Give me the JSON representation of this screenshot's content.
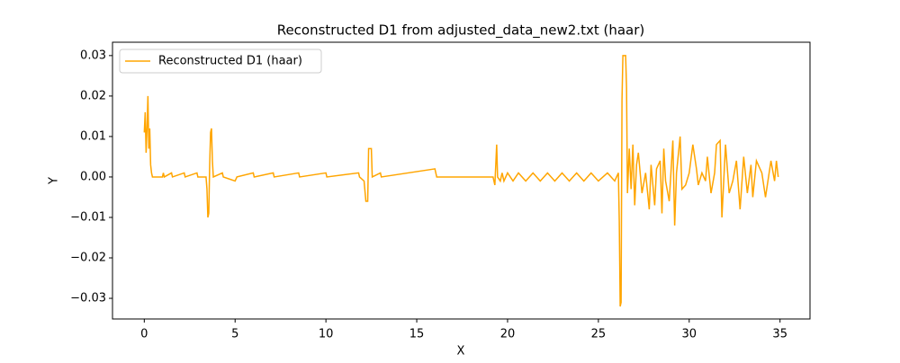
{
  "chart_data": {
    "type": "line",
    "title": "Reconstructed D1 from adjusted_data_new2.txt (haar)",
    "xlabel": "X",
    "ylabel": "Y",
    "legend": "upper left",
    "xlim": [
      -1.75,
      36.65
    ],
    "ylim": [
      -0.0351,
      0.0333
    ],
    "xticks": [
      0,
      5,
      10,
      15,
      20,
      25,
      30,
      35
    ],
    "yticks": [
      {
        "value": -0.03,
        "label": "−0.03"
      },
      {
        "value": -0.02,
        "label": "−0.02"
      },
      {
        "value": -0.01,
        "label": "−0.01"
      },
      {
        "value": 0,
        "label": "0.00"
      },
      0.01,
      0.02,
      0.03
    ],
    "series": [
      {
        "name": "Reconstructed D1 (haar)",
        "color": "#ffa500",
        "x": [
          0,
          0.05,
          0.1,
          0.15,
          0.2,
          0.25,
          0.3,
          0.35,
          0.4,
          0.45,
          1,
          1.05,
          1.1,
          1.5,
          1.55,
          2.2,
          2.25,
          2.9,
          2.95,
          3.4,
          3.45,
          3.5,
          3.55,
          3.6,
          3.65,
          3.7,
          3.75,
          3.8,
          4.3,
          4.35,
          5,
          5.1,
          6,
          6.05,
          7.1,
          7.15,
          8.5,
          8.55,
          10,
          10.05,
          11.8,
          11.85,
          12.1,
          12.2,
          12.3,
          12.35,
          12.5,
          12.55,
          13,
          13.05,
          16,
          16.1,
          19.2,
          19.3,
          19.4,
          19.45,
          19.6,
          19.7,
          19.8,
          20,
          20.3,
          20.6,
          21,
          21.4,
          21.8,
          22.2,
          22.6,
          23,
          23.4,
          23.8,
          24.2,
          24.6,
          25,
          25.5,
          25.9,
          26.1,
          26.15,
          26.2,
          26.25,
          26.3,
          26.35,
          26.5,
          26.55,
          26.6,
          26.7,
          26.8,
          26.9,
          27,
          27.1,
          27.2,
          27.4,
          27.6,
          27.8,
          27.9,
          28.1,
          28.2,
          28.4,
          28.5,
          28.6,
          28.7,
          28.9,
          29.1,
          29.2,
          29.3,
          29.5,
          29.6,
          29.8,
          30,
          30.2,
          30.4,
          30.5,
          30.7,
          30.9,
          31,
          31.2,
          31.4,
          31.5,
          31.7,
          31.8,
          32,
          32.2,
          32.4,
          32.6,
          32.8,
          33,
          33.2,
          33.4,
          33.5,
          33.7,
          34,
          34.2,
          34.5,
          34.7,
          34.8,
          34.9
        ],
        "values": [
          0.011,
          0.016,
          0.006,
          0.012,
          0.02,
          0.007,
          0.012,
          0.003,
          0.001,
          0,
          0,
          0.001,
          0,
          0.001,
          0,
          0.001,
          0,
          0.001,
          0,
          0,
          -0.003,
          -0.01,
          -0.009,
          0.003,
          0.011,
          0.012,
          0.004,
          0,
          0.001,
          0,
          -0.001,
          0,
          0.001,
          0,
          0.001,
          0,
          0.001,
          0,
          0.001,
          0,
          0.001,
          0,
          -0.001,
          -0.006,
          -0.006,
          0.007,
          0.007,
          0,
          0.001,
          0,
          0.002,
          0,
          0,
          -0.002,
          0.008,
          0,
          -0.001,
          0.001,
          -0.001,
          0.001,
          -0.001,
          0.001,
          -0.001,
          0.001,
          -0.001,
          0.001,
          -0.001,
          0.001,
          -0.001,
          0.001,
          -0.001,
          0.001,
          -0.001,
          0.001,
          -0.001,
          0.001,
          -0.011,
          -0.032,
          -0.031,
          0.019,
          0.03,
          0.03,
          0.022,
          -0.004,
          0.007,
          -0.003,
          0.008,
          -0.007,
          0.003,
          0.006,
          -0.004,
          0.001,
          -0.008,
          0.003,
          -0.007,
          0.002,
          0.004,
          -0.009,
          0.007,
          -0.001,
          -0.006,
          0.009,
          -0.012,
          0.001,
          0.01,
          -0.003,
          -0.002,
          0.001,
          0.008,
          0.002,
          -0.002,
          0.001,
          -0.001,
          0.005,
          -0.004,
          0.001,
          0.008,
          0.009,
          -0.01,
          0.008,
          -0.004,
          -0.001,
          0.004,
          -0.008,
          0.005,
          -0.004,
          0.003,
          -0.005,
          0.004,
          0.001,
          -0.005,
          0.004,
          -0.001,
          0.004,
          0
        ]
      }
    ]
  }
}
